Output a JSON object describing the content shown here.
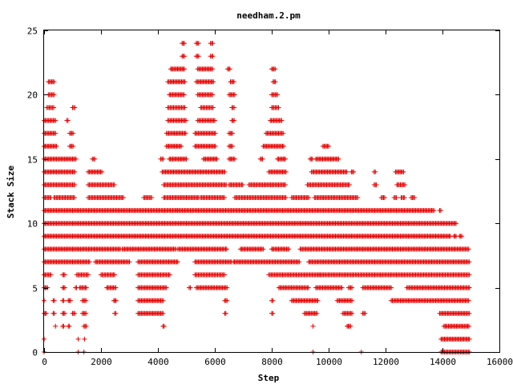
{
  "chart_data": {
    "type": "scatter",
    "title": "needham.2.pm",
    "xlabel": "Step",
    "ylabel": "Stack Size",
    "xlim": [
      0,
      16000
    ],
    "ylim": [
      0,
      25
    ],
    "xticks": [
      0,
      2000,
      4000,
      6000,
      8000,
      10000,
      12000,
      14000,
      16000
    ],
    "yticks": [
      0,
      5,
      10,
      15,
      20,
      25
    ],
    "x_tick_labels": [
      "0",
      "2000",
      "4000",
      "6000",
      "8000",
      "10000",
      "12000",
      "14000",
      "16000"
    ],
    "y_tick_labels": [
      "0",
      "5",
      "10",
      "15",
      "20",
      "25"
    ],
    "grid": false,
    "legend": "none",
    "marker": "+",
    "color": "#e60000",
    "series": [
      {
        "rows": [
          {
            "y": 0,
            "ranges": [
              [
                0,
                30
              ],
              [
                1200,
                1220
              ],
              [
                1400,
                1430
              ],
              [
                9450,
                9470
              ],
              [
                11150,
                11170
              ],
              [
                13950,
                14950
              ]
            ]
          },
          {
            "y": 1,
            "ranges": [
              [
                0,
                30
              ],
              [
                1200,
                1230
              ],
              [
                1420,
                1450
              ],
              [
                13950,
                14950
              ]
            ]
          },
          {
            "y": 2,
            "ranges": [
              [
                400,
                430
              ],
              [
                650,
                700
              ],
              [
                850,
                900
              ],
              [
                1400,
                1500
              ],
              [
                4180,
                4220
              ],
              [
                9450,
                9480
              ],
              [
                10650,
                10800
              ],
              [
                14050,
                14950
              ]
            ]
          },
          {
            "y": 3,
            "ranges": [
              [
                0,
                80
              ],
              [
                320,
                380
              ],
              [
                650,
                750
              ],
              [
                1000,
                1080
              ],
              [
                1350,
                1500
              ],
              [
                2480,
                2520
              ],
              [
                3300,
                4200
              ],
              [
                6350,
                6400
              ],
              [
                8000,
                8050
              ],
              [
                9150,
                9600
              ],
              [
                10500,
                10850
              ],
              [
                11200,
                11280
              ],
              [
                13900,
                14950
              ]
            ]
          },
          {
            "y": 4,
            "ranges": [
              [
                0,
                30
              ],
              [
                320,
                380
              ],
              [
                650,
                700
              ],
              [
                850,
                950
              ],
              [
                1350,
                1500
              ],
              [
                2450,
                2550
              ],
              [
                3300,
                4200
              ],
              [
                6350,
                6450
              ],
              [
                8000,
                8050
              ],
              [
                8700,
                9650
              ],
              [
                10300,
                10850
              ],
              [
                12200,
                14950
              ]
            ]
          },
          {
            "y": 5,
            "ranges": [
              [
                0,
                120
              ],
              [
                650,
                750
              ],
              [
                1100,
                1150
              ],
              [
                1250,
                1500
              ],
              [
                2200,
                2550
              ],
              [
                3300,
                4300
              ],
              [
                5100,
                5150
              ],
              [
                5350,
                6450
              ],
              [
                8250,
                9300
              ],
              [
                9550,
                10500
              ],
              [
                10700,
                10850
              ],
              [
                11200,
                12200
              ],
              [
                12750,
                14950
              ]
            ]
          },
          {
            "y": 6,
            "ranges": [
              [
                0,
                250
              ],
              [
                650,
                750
              ],
              [
                1150,
                1550
              ],
              [
                2000,
                2500
              ],
              [
                3300,
                4450
              ],
              [
                5300,
                6350
              ],
              [
                7900,
                9700
              ],
              [
                9700,
                14950
              ]
            ]
          },
          {
            "y": 7,
            "ranges": [
              [
                0,
                1600
              ],
              [
                1800,
                3000
              ],
              [
                3300,
                4700
              ],
              [
                5300,
                6600
              ],
              [
                6650,
                9000
              ],
              [
                9300,
                14950
              ]
            ]
          },
          {
            "y": 8,
            "ranges": [
              [
                0,
                2700
              ],
              [
                2750,
                4650
              ],
              [
                4700,
                6450
              ],
              [
                6900,
                7700
              ],
              [
                8000,
                8600
              ],
              [
                9000,
                14950
              ]
            ]
          },
          {
            "y": 9,
            "ranges": [
              [
                0,
                14300
              ],
              [
                14400,
                14500
              ],
              [
                14600,
                14700
              ]
            ]
          },
          {
            "y": 10,
            "ranges": [
              [
                0,
                14500
              ]
            ]
          },
          {
            "y": 11,
            "ranges": [
              [
                0,
                4700
              ],
              [
                4700,
                13700
              ],
              [
                13900,
                13950
              ]
            ]
          },
          {
            "y": 12,
            "ranges": [
              [
                0,
                250
              ],
              [
                350,
                1100
              ],
              [
                1550,
                2800
              ],
              [
                3500,
                3800
              ],
              [
                4200,
                5450
              ],
              [
                5500,
                6350
              ],
              [
                6700,
                8500
              ],
              [
                8700,
                9300
              ],
              [
                9500,
                11050
              ],
              [
                11850,
                12000
              ],
              [
                12300,
                12400
              ],
              [
                12550,
                12700
              ],
              [
                12900,
                13050
              ]
            ]
          },
          {
            "y": 13,
            "ranges": [
              [
                0,
                1100
              ],
              [
                1550,
                2500
              ],
              [
                4200,
                6400
              ],
              [
                6500,
                7000
              ],
              [
                7200,
                8500
              ],
              [
                9250,
                10750
              ],
              [
                11600,
                11700
              ],
              [
                12400,
                12700
              ]
            ]
          },
          {
            "y": 14,
            "ranges": [
              [
                0,
                1100
              ],
              [
                1550,
                2050
              ],
              [
                4150,
                6350
              ],
              [
                7900,
                8500
              ],
              [
                9400,
                10650
              ],
              [
                10800,
                10900
              ],
              [
                11600,
                11650
              ],
              [
                12350,
                12650
              ]
            ]
          },
          {
            "y": 15,
            "ranges": [
              [
                0,
                1150
              ],
              [
                1700,
                1800
              ],
              [
                4100,
                4200
              ],
              [
                4400,
                5000
              ],
              [
                5600,
                6100
              ],
              [
                6500,
                6700
              ],
              [
                7600,
                7700
              ],
              [
                8200,
                8500
              ],
              [
                9350,
                9450
              ],
              [
                9550,
                10350
              ]
            ]
          },
          {
            "y": 16,
            "ranges": [
              [
                0,
                450
              ],
              [
                900,
                1050
              ],
              [
                4300,
                4850
              ],
              [
                5300,
                6050
              ],
              [
                6500,
                6650
              ],
              [
                7700,
                8450
              ],
              [
                9800,
                10000
              ]
            ]
          },
          {
            "y": 17,
            "ranges": [
              [
                0,
                400
              ],
              [
                900,
                1050
              ],
              [
                4300,
                5000
              ],
              [
                5300,
                6050
              ],
              [
                6500,
                6650
              ],
              [
                7800,
                8400
              ]
            ]
          },
          {
            "y": 18,
            "ranges": [
              [
                0,
                400
              ],
              [
                800,
                850
              ],
              [
                4350,
                5000
              ],
              [
                5400,
                6000
              ],
              [
                6600,
                6700
              ],
              [
                7950,
                8350
              ]
            ]
          },
          {
            "y": 19,
            "ranges": [
              [
                100,
                350
              ],
              [
                1000,
                1100
              ],
              [
                4350,
                4950
              ],
              [
                5500,
                5950
              ],
              [
                6600,
                6700
              ],
              [
                8000,
                8250
              ]
            ]
          },
          {
            "y": 20,
            "ranges": [
              [
                150,
                350
              ],
              [
                4400,
                4950
              ],
              [
                5400,
                5950
              ],
              [
                6500,
                6700
              ],
              [
                8000,
                8200
              ]
            ]
          },
          {
            "y": 21,
            "ranges": [
              [
                150,
                350
              ],
              [
                4350,
                4950
              ],
              [
                5350,
                5950
              ],
              [
                6550,
                6700
              ],
              [
                8050,
                8150
              ]
            ]
          },
          {
            "y": 22,
            "ranges": [
              [
                4450,
                4950
              ],
              [
                5400,
                5950
              ],
              [
                6450,
                6550
              ],
              [
                8000,
                8150
              ]
            ]
          },
          {
            "y": 23,
            "ranges": [
              [
                4850,
                4950
              ],
              [
                5350,
                5450
              ],
              [
                5850,
                5950
              ]
            ]
          },
          {
            "y": 24,
            "ranges": [
              [
                4850,
                4950
              ],
              [
                5350,
                5450
              ],
              [
                5850,
                5950
              ]
            ]
          }
        ]
      }
    ]
  }
}
